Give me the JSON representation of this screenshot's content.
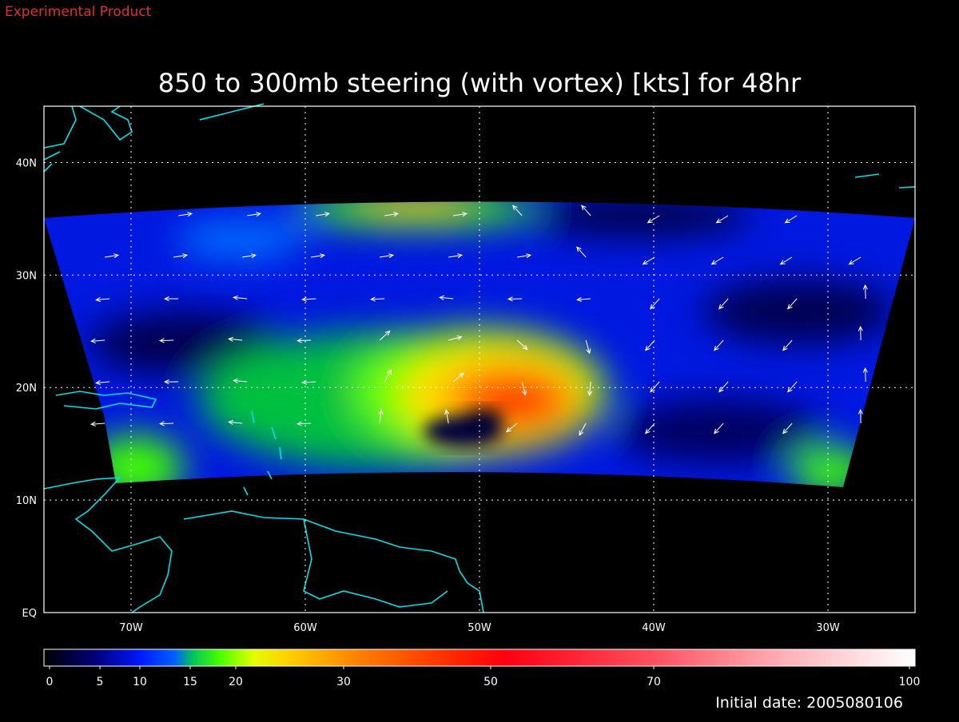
{
  "map": {
    "label": "Experimental Product",
    "title": "850 to 300mb steering (with vortex) [kts] for 48hr",
    "lat_range": [
      0,
      45
    ],
    "lon_range": [
      -75,
      -25
    ],
    "lat_ticks": [
      {
        "value": 0,
        "label": "EQ"
      },
      {
        "value": 10,
        "label": "10N"
      },
      {
        "value": 20,
        "label": "20N"
      },
      {
        "value": 30,
        "label": "30N"
      },
      {
        "value": 40,
        "label": "40N"
      }
    ],
    "lon_ticks": [
      {
        "value": -70,
        "label": "70W"
      },
      {
        "value": -60,
        "label": "60W"
      },
      {
        "value": -50,
        "label": "50W"
      },
      {
        "value": -40,
        "label": "40W"
      },
      {
        "value": -30,
        "label": "30W"
      }
    ],
    "colorbar": {
      "ticks": [
        0,
        5,
        10,
        15,
        20,
        30,
        50,
        70,
        100
      ]
    },
    "footer": "Initial date: 2005080106"
  }
}
